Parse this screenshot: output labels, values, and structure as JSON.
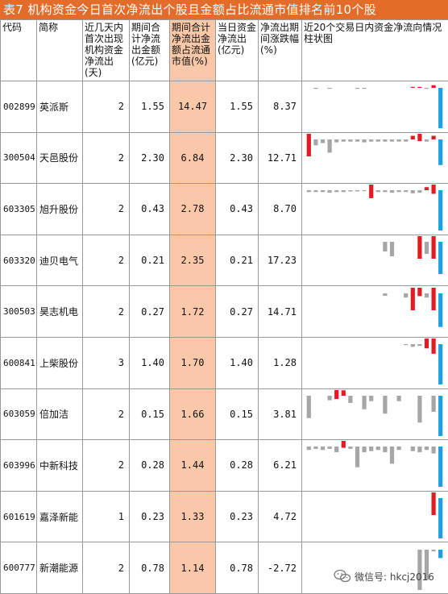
{
  "title": "表7 机构资金今日首次净流出个股且金额占比流通市值排名前10个股",
  "headers": {
    "code": "代码",
    "name": "简称",
    "days": "近几天内首次出现机构资金净流出(天)",
    "total": "期间合计净流出金额(亿元)",
    "ratio": "期间合计净流出金额占流通市值(%)",
    "today": "当日资金净流出(亿元)",
    "change": "净流出期间涨跌幅(%)",
    "chart": "近20个交易日内资金净流向情况柱状图"
  },
  "rows": [
    {
      "code": "002899",
      "name": "英派斯",
      "days": "2",
      "total": "1.55",
      "ratio": "14.47",
      "today": "1.55",
      "change": "8.37",
      "bars": [
        0,
        -0.1,
        0,
        -0.1,
        0,
        0,
        0,
        -0.1,
        -0.1,
        0,
        0,
        0,
        0,
        0,
        0,
        0.1,
        0.2,
        -0.1,
        0.6,
        -9.0
      ]
    },
    {
      "code": "300504",
      "name": "天邑股份",
      "days": "2",
      "total": "2.30",
      "ratio": "6.84",
      "today": "2.30",
      "change": "12.71",
      "bars": [
        5.5,
        -0.8,
        -0.5,
        -1.8,
        -0.4,
        -0.3,
        -0.3,
        -0.3,
        -0.4,
        -0.3,
        -0.3,
        -0.3,
        -0.3,
        -0.3,
        -0.3,
        0.5,
        1.0,
        -0.3,
        0.5,
        -3.5
      ]
    },
    {
      "code": "603305",
      "name": "旭升股份",
      "days": "2",
      "total": "0.43",
      "ratio": "2.78",
      "today": "0.43",
      "change": "8.70",
      "bars": [
        -0.3,
        -0.3,
        -0.3,
        -0.4,
        -0.3,
        -0.3,
        -0.2,
        -0.2,
        -0.1,
        2.2,
        -0.3,
        -0.3,
        -0.4,
        -0.3,
        -0.3,
        -0.5,
        -0.4,
        0.5,
        1.5,
        -6.5
      ]
    },
    {
      "code": "603320",
      "name": "迪贝电气",
      "days": "2",
      "total": "0.21",
      "ratio": "2.35",
      "today": "0.21",
      "change": "17.23",
      "bars": [
        0,
        0,
        0,
        0,
        0,
        0,
        0,
        0,
        0,
        0,
        0,
        -1.2,
        -1.8,
        0,
        0,
        0,
        3.5,
        -1.5,
        5.0,
        -4.0
      ]
    },
    {
      "code": "300503",
      "name": "昊志机电",
      "days": "2",
      "total": "0.27",
      "ratio": "1.72",
      "today": "0.27",
      "change": "14.71",
      "bars": [
        0,
        0,
        0,
        0,
        0,
        0,
        0,
        0,
        0,
        0,
        0,
        -0.3,
        0,
        0,
        -0.5,
        3.0,
        1.0,
        -0.5,
        4.8,
        -4.0
      ]
    },
    {
      "code": "600841",
      "name": "上柴股份",
      "days": "3",
      "total": "1.40",
      "ratio": "1.70",
      "today": "1.40",
      "change": "1.28",
      "bars": [
        0,
        0,
        0,
        0,
        0,
        0,
        0,
        0,
        0,
        0,
        0,
        0,
        0,
        0,
        -0.2,
        -0.6,
        -0.4,
        2.2,
        3.4,
        -9.0
      ]
    },
    {
      "code": "603059",
      "name": "倍加洁",
      "days": "2",
      "total": "0.15",
      "ratio": "1.66",
      "today": "0.15",
      "change": "3.81",
      "bars": [
        -2.5,
        0,
        0,
        -0.5,
        1.0,
        0.6,
        -0.8,
        0,
        -1.5,
        -0.6,
        0,
        -2.0,
        0,
        -0.6,
        0,
        0,
        -3.0,
        0,
        -1.8,
        -4.5
      ]
    },
    {
      "code": "603996",
      "name": "中新科技",
      "days": "2",
      "total": "0.28",
      "ratio": "1.44",
      "today": "0.28",
      "change": "6.21",
      "bars": [
        -0.3,
        -0.2,
        -0.3,
        -0.2,
        -0.5,
        0.6,
        -0.2,
        -1.8,
        -0.5,
        -0.4,
        -0.3,
        -0.5,
        -1.5,
        -0.3,
        0,
        -0.4,
        -0.5,
        -0.3,
        -0.6,
        -3.5
      ]
    },
    {
      "code": "601619",
      "name": "嘉泽新能",
      "days": "1",
      "total": "0.23",
      "ratio": "1.33",
      "today": "0.23",
      "change": "4.72",
      "bars": [
        0,
        0,
        0,
        0,
        0,
        0,
        0,
        0,
        0,
        0,
        0,
        0,
        0,
        0,
        0,
        0,
        0,
        0,
        2.0,
        -3.4
      ]
    },
    {
      "code": "600777",
      "name": "新潮能源",
      "days": "2",
      "total": "0.78",
      "ratio": "1.14",
      "today": "0.78",
      "change": "-2.72",
      "bars": [
        0,
        0,
        0,
        0,
        0,
        0,
        0,
        0,
        0,
        0,
        0,
        0,
        0,
        0,
        0,
        0,
        -12.0,
        -9.0,
        -0.5,
        -2.5
      ]
    }
  ],
  "colors": {
    "title_bg": "#e36c2a",
    "highlight": "#f9c8a8",
    "bar_positive": "#e31b23",
    "bar_negative": "#a6a6a6",
    "bar_last": "#1ba1e2"
  },
  "watermark": {
    "text": "微信号: hkcj2016",
    "icon": "wechat-icon"
  }
}
